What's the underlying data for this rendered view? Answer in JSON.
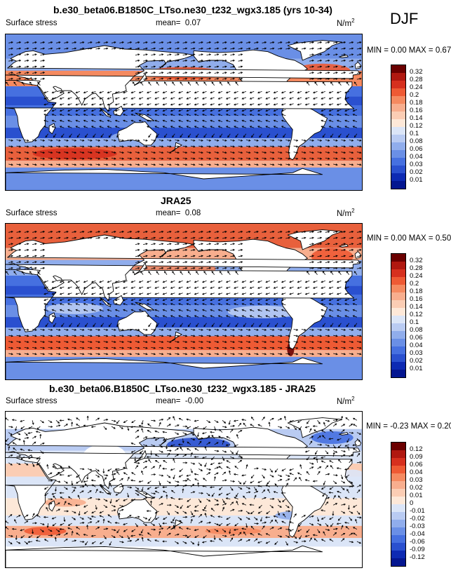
{
  "season": "DJF",
  "field_label": "Surface stress",
  "units_base": "N/m",
  "units_exp": "2",
  "panels": [
    {
      "title": "b.e30_beta06.B1850C_LTso.ne30_t232_wgx3.185 (yrs 10-34)",
      "mean_label": "mean=",
      "mean_value": "0.07",
      "min_label": "MIN =",
      "min_value": "0.00",
      "max_label": "MAX =",
      "max_value": "0.67"
    },
    {
      "title": "JRA25",
      "mean_label": "mean=",
      "mean_value": "0.08",
      "min_label": "MIN =",
      "min_value": "0.00",
      "max_label": "MAX =",
      "max_value": "0.50"
    },
    {
      "title": "b.e30_beta06.B1850C_LTso.ne30_t232_wgx3.185 - JRA25",
      "mean_label": "mean=",
      "mean_value": "-0.00",
      "min_label": "MIN =",
      "min_value": "-0.23",
      "max_label": "MAX =",
      "max_value": "0.20"
    }
  ],
  "chart_data": [
    {
      "type": "heatmap",
      "title": "b.e30_beta06.B1850C_LTso.ne30_t232_wgx3.185 (yrs 10-34)",
      "variable": "Surface stress",
      "units": "N/m2",
      "mean": 0.07,
      "min": 0.0,
      "max": 0.67,
      "colorbar_levels": [
        0.32,
        0.28,
        0.24,
        0.2,
        0.18,
        0.16,
        0.14,
        0.12,
        0.1,
        0.08,
        0.06,
        0.04,
        0.03,
        0.02,
        0.01
      ],
      "colorbar_colors": [
        "#6b0000",
        "#b01810",
        "#d6301e",
        "#ee5a34",
        "#f58a60",
        "#f8ae8e",
        "#fbcdb4",
        "#fde8d8",
        "#dbe5f7",
        "#b9cbf2",
        "#90adec",
        "#6a8fe6",
        "#4670e0",
        "#2a50cf",
        "#0d2ab3",
        "#041690"
      ]
    },
    {
      "type": "heatmap",
      "title": "JRA25",
      "variable": "Surface stress",
      "units": "N/m2",
      "mean": 0.08,
      "min": 0.0,
      "max": 0.5,
      "colorbar_levels": [
        0.32,
        0.28,
        0.24,
        0.2,
        0.18,
        0.16,
        0.14,
        0.12,
        0.1,
        0.08,
        0.06,
        0.04,
        0.03,
        0.02,
        0.01
      ],
      "colorbar_colors": [
        "#6b0000",
        "#b01810",
        "#d6301e",
        "#ee5a34",
        "#f58a60",
        "#f8ae8e",
        "#fbcdb4",
        "#fde8d8",
        "#dbe5f7",
        "#b9cbf2",
        "#90adec",
        "#6a8fe6",
        "#4670e0",
        "#2a50cf",
        "#0d2ab3",
        "#041690"
      ]
    },
    {
      "type": "heatmap",
      "title": "b.e30_beta06.B1850C_LTso.ne30_t232_wgx3.185 - JRA25",
      "variable": "Surface stress",
      "units": "N/m2",
      "mean": -0.0,
      "min": -0.23,
      "max": 0.2,
      "colorbar_levels": [
        0.12,
        0.09,
        0.06,
        0.04,
        0.03,
        0.02,
        0.01,
        0,
        -0.01,
        -0.02,
        -0.03,
        -0.04,
        -0.06,
        -0.09,
        -0.12
      ],
      "colorbar_colors": [
        "#6b0000",
        "#b01810",
        "#d6301e",
        "#ee5a34",
        "#f58a60",
        "#f8ae8e",
        "#fbcdb4",
        "#fde8d8",
        "#dbe5f7",
        "#b9cbf2",
        "#90adec",
        "#6a8fe6",
        "#4670e0",
        "#2a50cf",
        "#0d2ab3",
        "#041690"
      ]
    }
  ]
}
